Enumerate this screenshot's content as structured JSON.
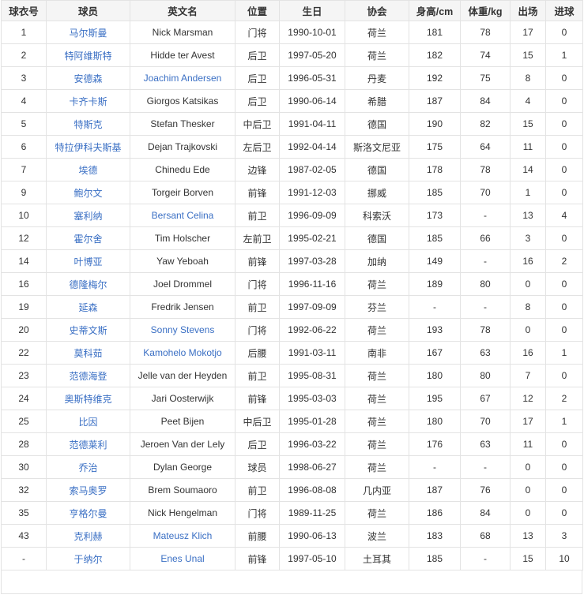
{
  "table": {
    "headers": [
      "球衣号",
      "球员",
      "英文名",
      "位置",
      "生日",
      "协会",
      "身高/cm",
      "体重/kg",
      "出场",
      "进球"
    ],
    "link_color": "#3a6fc4",
    "rows": [
      {
        "no": "1",
        "cn": "马尔斯曼",
        "en": "Nick Marsman",
        "en_link": false,
        "pos": "门将",
        "birth": "1990-10-01",
        "assoc": "荷兰",
        "height": "181",
        "weight": "78",
        "apps": "17",
        "goals": "0"
      },
      {
        "no": "2",
        "cn": "特阿维斯特",
        "en": "Hidde ter Avest",
        "en_link": false,
        "pos": "后卫",
        "birth": "1997-05-20",
        "assoc": "荷兰",
        "height": "182",
        "weight": "74",
        "apps": "15",
        "goals": "1"
      },
      {
        "no": "3",
        "cn": "安德森",
        "en": "Joachim Andersen",
        "en_link": true,
        "pos": "后卫",
        "birth": "1996-05-31",
        "assoc": "丹麦",
        "height": "192",
        "weight": "75",
        "apps": "8",
        "goals": "0"
      },
      {
        "no": "4",
        "cn": "卡齐卡斯",
        "en": "Giorgos Katsikas",
        "en_link": false,
        "pos": "后卫",
        "birth": "1990-06-14",
        "assoc": "希腊",
        "height": "187",
        "weight": "84",
        "apps": "4",
        "goals": "0"
      },
      {
        "no": "5",
        "cn": "特斯克",
        "en": "Stefan Thesker",
        "en_link": false,
        "pos": "中后卫",
        "birth": "1991-04-11",
        "assoc": "德国",
        "height": "190",
        "weight": "82",
        "apps": "15",
        "goals": "0"
      },
      {
        "no": "6",
        "cn": "特拉伊科夫斯基",
        "en": "Dejan Trajkovski",
        "en_link": false,
        "pos": "左后卫",
        "birth": "1992-04-14",
        "assoc": "斯洛文尼亚",
        "height": "175",
        "weight": "64",
        "apps": "11",
        "goals": "0"
      },
      {
        "no": "7",
        "cn": "埃德",
        "en": "Chinedu Ede",
        "en_link": false,
        "pos": "边锋",
        "birth": "1987-02-05",
        "assoc": "德国",
        "height": "178",
        "weight": "78",
        "apps": "14",
        "goals": "0"
      },
      {
        "no": "9",
        "cn": "鲍尔文",
        "en": "Torgeir Borven",
        "en_link": false,
        "pos": "前锋",
        "birth": "1991-12-03",
        "assoc": "挪威",
        "height": "185",
        "weight": "70",
        "apps": "1",
        "goals": "0"
      },
      {
        "no": "10",
        "cn": "塞利纳",
        "en": "Bersant Celina",
        "en_link": true,
        "pos": "前卫",
        "birth": "1996-09-09",
        "assoc": "科索沃",
        "height": "173",
        "weight": "-",
        "apps": "13",
        "goals": "4"
      },
      {
        "no": "12",
        "cn": "霍尔舍",
        "en": "Tim Holscher",
        "en_link": false,
        "pos": "左前卫",
        "birth": "1995-02-21",
        "assoc": "德国",
        "height": "185",
        "weight": "66",
        "apps": "3",
        "goals": "0"
      },
      {
        "no": "14",
        "cn": "叶博亚",
        "en": "Yaw Yeboah",
        "en_link": false,
        "pos": "前锋",
        "birth": "1997-03-28",
        "assoc": "加纳",
        "height": "149",
        "weight": "-",
        "apps": "16",
        "goals": "2"
      },
      {
        "no": "16",
        "cn": "德隆梅尔",
        "en": "Joel Drommel",
        "en_link": false,
        "pos": "门将",
        "birth": "1996-11-16",
        "assoc": "荷兰",
        "height": "189",
        "weight": "80",
        "apps": "0",
        "goals": "0"
      },
      {
        "no": "19",
        "cn": "延森",
        "en": "Fredrik Jensen",
        "en_link": false,
        "pos": "前卫",
        "birth": "1997-09-09",
        "assoc": "芬兰",
        "height": "-",
        "weight": "-",
        "apps": "8",
        "goals": "0"
      },
      {
        "no": "20",
        "cn": "史蒂文斯",
        "en": "Sonny Stevens",
        "en_link": true,
        "pos": "门将",
        "birth": "1992-06-22",
        "assoc": "荷兰",
        "height": "193",
        "weight": "78",
        "apps": "0",
        "goals": "0"
      },
      {
        "no": "22",
        "cn": "莫科茹",
        "en": "Kamohelo Mokotjo",
        "en_link": true,
        "pos": "后腰",
        "birth": "1991-03-11",
        "assoc": "南非",
        "height": "167",
        "weight": "63",
        "apps": "16",
        "goals": "1"
      },
      {
        "no": "23",
        "cn": "范德海登",
        "en": "Jelle van der Heyden",
        "en_link": false,
        "pos": "前卫",
        "birth": "1995-08-31",
        "assoc": "荷兰",
        "height": "180",
        "weight": "80",
        "apps": "7",
        "goals": "0"
      },
      {
        "no": "24",
        "cn": "奥斯特维克",
        "en": "Jari Oosterwijk",
        "en_link": false,
        "pos": "前锋",
        "birth": "1995-03-03",
        "assoc": "荷兰",
        "height": "195",
        "weight": "67",
        "apps": "12",
        "goals": "2"
      },
      {
        "no": "25",
        "cn": "比因",
        "en": "Peet Bijen",
        "en_link": false,
        "pos": "中后卫",
        "birth": "1995-01-28",
        "assoc": "荷兰",
        "height": "180",
        "weight": "70",
        "apps": "17",
        "goals": "1"
      },
      {
        "no": "28",
        "cn": "范德莱利",
        "en": "Jeroen Van der Lely",
        "en_link": false,
        "pos": "后卫",
        "birth": "1996-03-22",
        "assoc": "荷兰",
        "height": "176",
        "weight": "63",
        "apps": "11",
        "goals": "0"
      },
      {
        "no": "30",
        "cn": "乔治",
        "en": "Dylan George",
        "en_link": false,
        "pos": "球员",
        "birth": "1998-06-27",
        "assoc": "荷兰",
        "height": "-",
        "weight": "-",
        "apps": "0",
        "goals": "0"
      },
      {
        "no": "32",
        "cn": "索马奥罗",
        "en": "Brem Soumaoro",
        "en_link": false,
        "pos": "前卫",
        "birth": "1996-08-08",
        "assoc": "几内亚",
        "height": "187",
        "weight": "76",
        "apps": "0",
        "goals": "0"
      },
      {
        "no": "35",
        "cn": "亨格尔曼",
        "en": "Nick Hengelman",
        "en_link": false,
        "pos": "门将",
        "birth": "1989-11-25",
        "assoc": "荷兰",
        "height": "186",
        "weight": "84",
        "apps": "0",
        "goals": "0"
      },
      {
        "no": "43",
        "cn": "克利赫",
        "en": "Mateusz Klich",
        "en_link": true,
        "pos": "前腰",
        "birth": "1990-06-13",
        "assoc": "波兰",
        "height": "183",
        "weight": "68",
        "apps": "13",
        "goals": "3"
      },
      {
        "no": "-",
        "cn": "于纳尔",
        "en": "Enes Unal",
        "en_link": true,
        "pos": "前锋",
        "birth": "1997-05-10",
        "assoc": "土耳其",
        "height": "185",
        "weight": "-",
        "apps": "15",
        "goals": "10"
      }
    ]
  }
}
